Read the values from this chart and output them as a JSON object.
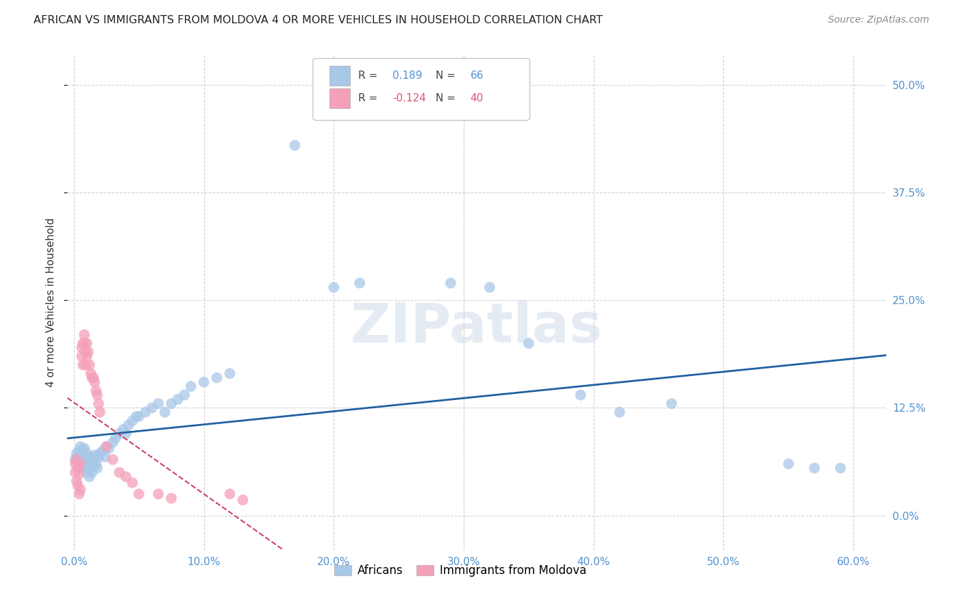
{
  "title": "AFRICAN VS IMMIGRANTS FROM MOLDOVA 4 OR MORE VEHICLES IN HOUSEHOLD CORRELATION CHART",
  "source": "Source: ZipAtlas.com",
  "ylabel": "4 or more Vehicles in Household",
  "xlabel_ticks": [
    "0.0%",
    "10.0%",
    "20.0%",
    "30.0%",
    "40.0%",
    "50.0%",
    "60.0%"
  ],
  "xlabel_vals": [
    0.0,
    0.1,
    0.2,
    0.3,
    0.4,
    0.5,
    0.6
  ],
  "ylabel_ticks": [
    "0.0%",
    "12.5%",
    "25.0%",
    "37.5%",
    "50.0%"
  ],
  "ylabel_vals": [
    0.0,
    0.125,
    0.25,
    0.375,
    0.5
  ],
  "xlim": [
    -0.005,
    0.625
  ],
  "ylim": [
    -0.04,
    0.535
  ],
  "african_color": "#a8c8e8",
  "moldova_color": "#f4a0b8",
  "african_line_color": "#2060a0",
  "moldova_line_color": "#d04060",
  "background_color": "#ffffff",
  "grid_color": "#d0d0d0",
  "tick_color": "#5090d0",
  "legend_R_color_african": "#5090d0",
  "legend_R_color_moldova": "#e05070",
  "africans_x": [
    0.001,
    0.002,
    0.003,
    0.004,
    0.005,
    0.005,
    0.006,
    0.006,
    0.007,
    0.007,
    0.008,
    0.008,
    0.009,
    0.009,
    0.01,
    0.01,
    0.011,
    0.011,
    0.012,
    0.012,
    0.013,
    0.013,
    0.014,
    0.015,
    0.015,
    0.016,
    0.017,
    0.018,
    0.019,
    0.02,
    0.022,
    0.024,
    0.025,
    0.027,
    0.03,
    0.032,
    0.035,
    0.038,
    0.04,
    0.042,
    0.045,
    0.048,
    0.05,
    0.055,
    0.06,
    0.065,
    0.07,
    0.075,
    0.08,
    0.085,
    0.09,
    0.1,
    0.11,
    0.12,
    0.17,
    0.2,
    0.22,
    0.29,
    0.32,
    0.35,
    0.39,
    0.42,
    0.46,
    0.55,
    0.57,
    0.59
  ],
  "africans_y": [
    0.065,
    0.072,
    0.068,
    0.075,
    0.06,
    0.08,
    0.058,
    0.07,
    0.055,
    0.075,
    0.062,
    0.078,
    0.058,
    0.068,
    0.05,
    0.072,
    0.055,
    0.065,
    0.045,
    0.068,
    0.055,
    0.062,
    0.05,
    0.065,
    0.058,
    0.07,
    0.06,
    0.055,
    0.068,
    0.072,
    0.075,
    0.068,
    0.08,
    0.078,
    0.085,
    0.09,
    0.095,
    0.1,
    0.095,
    0.105,
    0.11,
    0.115,
    0.115,
    0.12,
    0.125,
    0.13,
    0.12,
    0.13,
    0.135,
    0.14,
    0.15,
    0.155,
    0.16,
    0.165,
    0.43,
    0.265,
    0.27,
    0.27,
    0.265,
    0.2,
    0.14,
    0.12,
    0.13,
    0.06,
    0.055,
    0.055
  ],
  "moldova_x": [
    0.001,
    0.001,
    0.002,
    0.002,
    0.003,
    0.003,
    0.004,
    0.004,
    0.005,
    0.005,
    0.006,
    0.006,
    0.007,
    0.007,
    0.008,
    0.008,
    0.009,
    0.009,
    0.01,
    0.01,
    0.011,
    0.012,
    0.013,
    0.014,
    0.015,
    0.016,
    0.017,
    0.018,
    0.019,
    0.02,
    0.025,
    0.03,
    0.035,
    0.04,
    0.045,
    0.05,
    0.065,
    0.075,
    0.12,
    0.13
  ],
  "moldova_y": [
    0.06,
    0.05,
    0.065,
    0.04,
    0.055,
    0.035,
    0.048,
    0.025,
    0.06,
    0.03,
    0.195,
    0.185,
    0.175,
    0.2,
    0.21,
    0.2,
    0.19,
    0.175,
    0.2,
    0.185,
    0.19,
    0.175,
    0.165,
    0.16,
    0.16,
    0.155,
    0.145,
    0.14,
    0.13,
    0.12,
    0.08,
    0.065,
    0.05,
    0.045,
    0.038,
    0.025,
    0.025,
    0.02,
    0.025,
    0.018
  ]
}
